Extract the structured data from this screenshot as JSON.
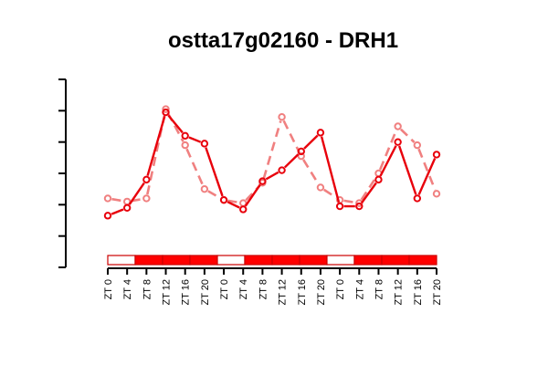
{
  "chart_data": {
    "type": "line",
    "title": "ostta17g02160 - DRH1",
    "xlabel": "",
    "ylabel": "",
    "x_tick_labels": [
      "ZT 0",
      "ZT 4",
      "ZT 8",
      "ZT 12",
      "ZT 16",
      "ZT 20",
      "ZT 0",
      "ZT 4",
      "ZT 8",
      "ZT 12",
      "ZT 16",
      "ZT 20",
      "ZT 0",
      "ZT 4",
      "ZT 8",
      "ZT 12",
      "ZT 16",
      "ZT 20"
    ],
    "x": [
      1,
      2,
      3,
      4,
      5,
      6,
      7,
      8,
      9,
      10,
      11,
      12,
      13,
      14,
      15,
      16,
      17,
      18
    ],
    "ylim": [
      0,
      6
    ],
    "y_ticks": [
      0,
      1,
      2,
      3,
      4,
      5,
      6
    ],
    "series": [
      {
        "color": "#e8000b",
        "line_style": "solid",
        "values": [
          1.65,
          1.9,
          2.8,
          4.95,
          4.2,
          3.95,
          2.15,
          1.85,
          2.75,
          3.1,
          3.7,
          4.3,
          1.95,
          1.95,
          2.8,
          4.0,
          2.2,
          3.6
        ]
      },
      {
        "color": "#f08080",
        "line_style": "dashed",
        "values": [
          2.2,
          2.1,
          2.2,
          5.05,
          3.9,
          2.5,
          2.15,
          2.05,
          2.7,
          4.8,
          3.55,
          2.55,
          2.15,
          2.05,
          3.0,
          4.5,
          3.9,
          2.35
        ]
      }
    ],
    "light_bar": {
      "segments": [
        "light",
        "dark",
        "dark",
        "dark",
        "light",
        "dark",
        "dark",
        "dark",
        "light",
        "dark",
        "dark",
        "dark"
      ],
      "light_color": "#ffffff",
      "dark_color": "#ff0000",
      "border_color": "#cc0000"
    },
    "grid": false,
    "legend": "none"
  }
}
